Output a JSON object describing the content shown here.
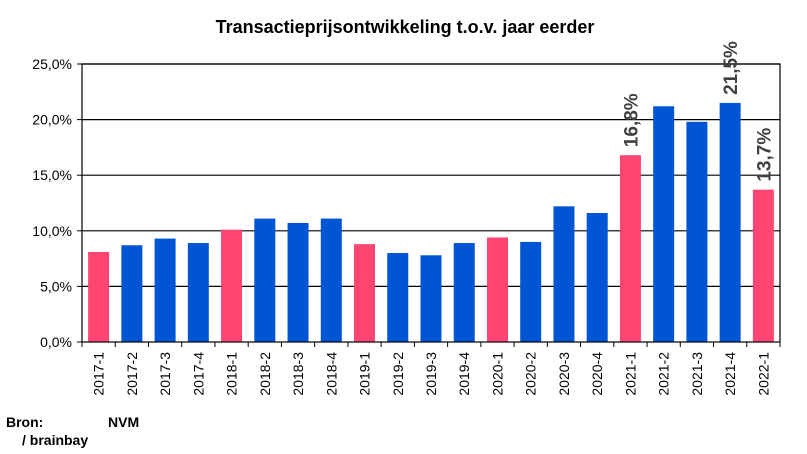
{
  "chart_data": {
    "type": "bar",
    "title": "Transactieprijsontwikkeling t.o.v. jaar eerder",
    "xlabel": "",
    "ylabel": "",
    "ylim": [
      0,
      25
    ],
    "y_ticks": [
      "0,0%",
      "5,0%",
      "10,0%",
      "15,0%",
      "20,0%",
      "25,0%"
    ],
    "y_tick_values": [
      0,
      5,
      10,
      15,
      20,
      25
    ],
    "grid": true,
    "categories": [
      "2017-1",
      "2017-2",
      "2017-3",
      "2017-4",
      "2018-1",
      "2018-2",
      "2018-3",
      "2018-4",
      "2019-1",
      "2019-2",
      "2019-3",
      "2019-4",
      "2020-1",
      "2020-2",
      "2020-3",
      "2020-4",
      "2021-1",
      "2021-2",
      "2021-3",
      "2021-4",
      "2022-1"
    ],
    "values": [
      8.1,
      8.7,
      9.3,
      8.9,
      10.1,
      11.1,
      10.7,
      11.1,
      8.8,
      8.0,
      7.8,
      8.9,
      9.4,
      9.0,
      12.2,
      11.6,
      16.8,
      21.2,
      19.8,
      21.5,
      13.7
    ],
    "highlight": [
      true,
      false,
      false,
      false,
      true,
      false,
      false,
      false,
      true,
      false,
      false,
      false,
      true,
      false,
      false,
      false,
      true,
      false,
      false,
      false,
      true
    ],
    "colors": {
      "highlight": "#FF4571",
      "default": "#0055D4",
      "grid": "#000000"
    },
    "annotations": [
      {
        "index": 16,
        "text": "16,8%"
      },
      {
        "index": 19,
        "text": "21,5%"
      },
      {
        "index": 20,
        "text": "13,7%"
      }
    ]
  },
  "source": {
    "label": "Bron:",
    "org": "NVM",
    "org2": "/ brainbay"
  }
}
